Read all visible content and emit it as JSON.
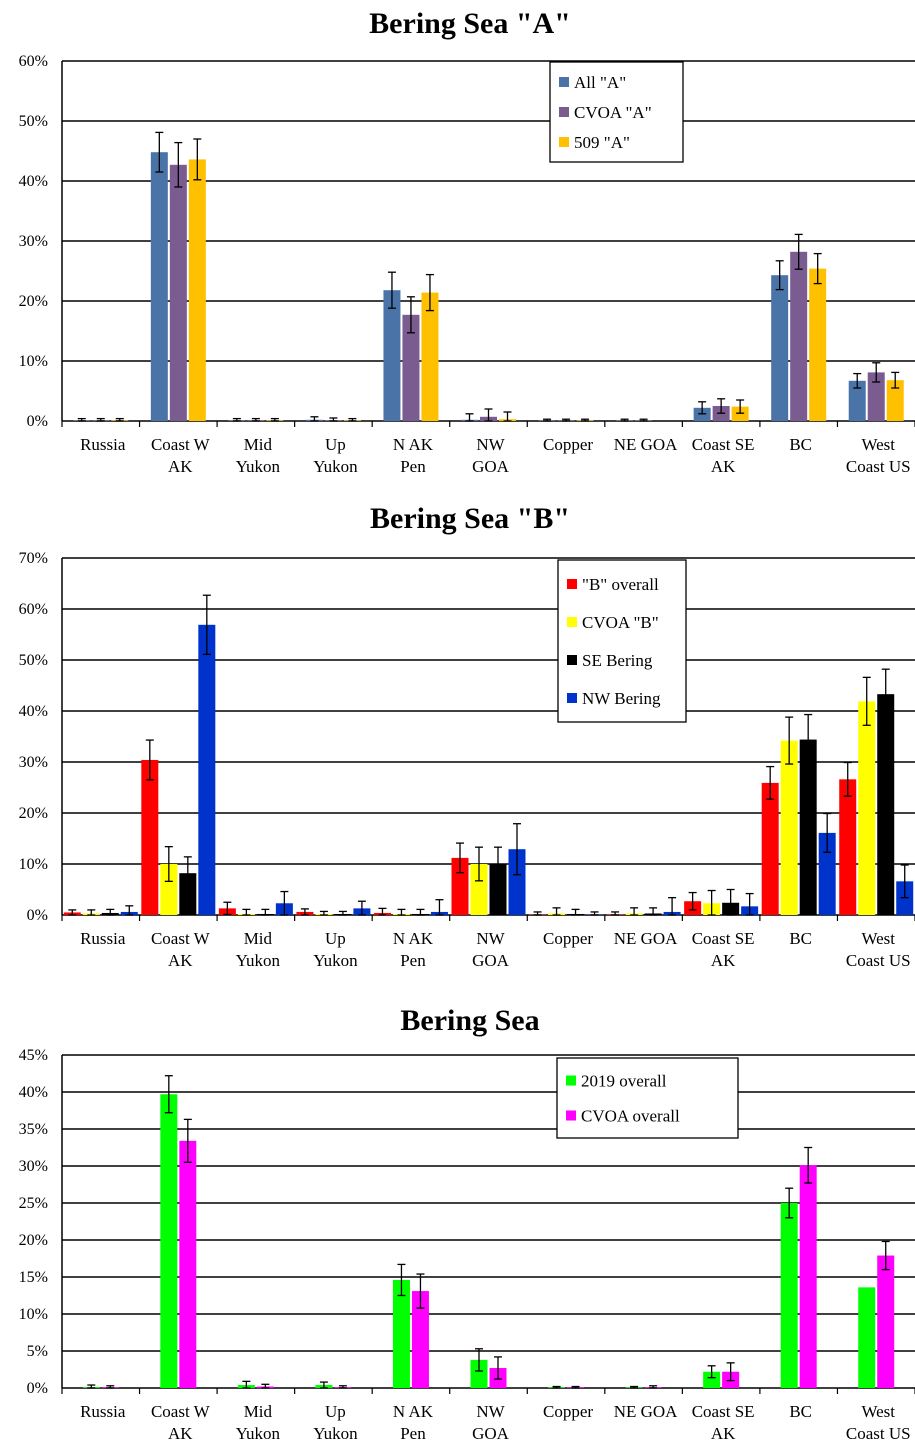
{
  "chart_data": [
    {
      "type": "bar",
      "title": "Bering Sea \"A\"",
      "categories": [
        "Russia",
        "Coast W AK",
        "Mid Yukon",
        "Up Yukon",
        "N AK Pen",
        "NW GOA",
        "Copper",
        "NE GOA",
        "Coast SE AK",
        "BC",
        "West Coast US"
      ],
      "category_lines": [
        [
          "Russia"
        ],
        [
          "Coast W",
          "AK"
        ],
        [
          "Mid",
          "Yukon"
        ],
        [
          "Up",
          "Yukon"
        ],
        [
          "N AK",
          "Pen"
        ],
        [
          "NW",
          "GOA"
        ],
        [
          "Copper"
        ],
        [
          "NE GOA"
        ],
        [
          "Coast SE",
          "AK"
        ],
        [
          "BC"
        ],
        [
          "West",
          "Coast US"
        ]
      ],
      "ylim": [
        0,
        60
      ],
      "ytick_step": 10,
      "yticks": [
        "0%",
        "10%",
        "20%",
        "30%",
        "40%",
        "50%",
        "60%"
      ],
      "grid": true,
      "legend_position": "top-right",
      "series": [
        {
          "name": "All \"A\"",
          "color": "#4a74a8",
          "values": [
            0.1,
            44.8,
            0.1,
            0.2,
            21.8,
            0.2,
            0.1,
            0.1,
            2.2,
            24.3,
            6.7
          ],
          "err": [
            0.3,
            3.3,
            0.3,
            0.5,
            3.0,
            1.0,
            0.2,
            0.2,
            1.0,
            2.4,
            1.2
          ]
        },
        {
          "name": "CVOA \"A\"",
          "color": "#7a5c91",
          "values": [
            0.1,
            42.7,
            0.1,
            0.1,
            17.7,
            0.7,
            0.1,
            0.1,
            2.5,
            28.2,
            8.1
          ],
          "err": [
            0.3,
            3.7,
            0.3,
            0.4,
            3.0,
            1.3,
            0.2,
            0.2,
            1.2,
            2.9,
            1.6
          ]
        },
        {
          "name": "509 \"A\"",
          "color": "#ffc000",
          "values": [
            0.1,
            43.6,
            0.1,
            0.1,
            21.4,
            0.3,
            0.1,
            0.0,
            2.4,
            25.4,
            6.8
          ],
          "err": [
            0.3,
            3.4,
            0.3,
            0.3,
            3.0,
            1.2,
            0.2,
            0.0,
            1.1,
            2.5,
            1.3
          ]
        }
      ]
    },
    {
      "type": "bar",
      "title": "Bering Sea \"B\"",
      "categories": [
        "Russia",
        "Coast W AK",
        "Mid Yukon",
        "Up Yukon",
        "N AK Pen",
        "NW GOA",
        "Copper",
        "NE GOA",
        "Coast SE AK",
        "BC",
        "West Coast US"
      ],
      "category_lines": [
        [
          "Russia"
        ],
        [
          "Coast W",
          "AK"
        ],
        [
          "Mid",
          "Yukon"
        ],
        [
          "Up",
          "Yukon"
        ],
        [
          "N AK",
          "Pen"
        ],
        [
          "NW",
          "GOA"
        ],
        [
          "Copper"
        ],
        [
          "NE GOA"
        ],
        [
          "Coast SE",
          "AK"
        ],
        [
          "BC"
        ],
        [
          "West",
          "Coast US"
        ]
      ],
      "ylim": [
        0,
        70
      ],
      "ytick_step": 10,
      "yticks": [
        "0%",
        "10%",
        "20%",
        "30%",
        "40%",
        "50%",
        "60%",
        "70%"
      ],
      "grid": true,
      "legend_position": "top-right",
      "series": [
        {
          "name": "\"B\" overall",
          "color": "#ff0000",
          "values": [
            0.5,
            30.4,
            1.3,
            0.6,
            0.4,
            11.2,
            0.1,
            0.1,
            2.7,
            25.9,
            26.6
          ],
          "err": [
            0.5,
            3.9,
            1.2,
            0.6,
            0.9,
            2.9,
            0.5,
            0.5,
            1.7,
            3.2,
            3.3
          ]
        },
        {
          "name": "CVOA \"B\"",
          "color": "#ffff00",
          "values": [
            0.3,
            10.0,
            0.2,
            0.2,
            0.2,
            10.0,
            0.3,
            0.3,
            2.3,
            34.2,
            41.9
          ],
          "err": [
            0.7,
            3.4,
            0.9,
            0.5,
            0.9,
            3.3,
            1.1,
            1.1,
            2.5,
            4.6,
            4.7
          ]
        },
        {
          "name": "SE Bering",
          "color": "#000000",
          "values": [
            0.4,
            8.2,
            0.2,
            0.2,
            0.2,
            10.0,
            0.2,
            0.3,
            2.4,
            34.4,
            43.3
          ],
          "err": [
            0.7,
            3.2,
            0.9,
            0.5,
            0.9,
            3.3,
            0.9,
            1.1,
            2.6,
            4.9,
            4.9
          ]
        },
        {
          "name": "NW Bering",
          "color": "#0033cc",
          "values": [
            0.6,
            56.9,
            2.3,
            1.3,
            0.6,
            12.9,
            0.1,
            0.6,
            1.7,
            16.1,
            6.6
          ],
          "err": [
            1.2,
            5.8,
            2.3,
            1.4,
            2.4,
            5.0,
            0.5,
            2.8,
            2.5,
            3.8,
            3.2
          ]
        }
      ]
    },
    {
      "type": "bar",
      "title": "Bering Sea",
      "categories": [
        "Russia",
        "Coast W AK",
        "Mid Yukon",
        "Up Yukon",
        "N AK Pen",
        "NW GOA",
        "Copper",
        "NE GOA",
        "Coast SE AK",
        "BC",
        "West Coast US"
      ],
      "category_lines": [
        [
          "Russia"
        ],
        [
          "Coast W",
          "AK"
        ],
        [
          "Mid",
          "Yukon"
        ],
        [
          "Up",
          "Yukon"
        ],
        [
          "N AK",
          "Pen"
        ],
        [
          "NW",
          "GOA"
        ],
        [
          "Copper"
        ],
        [
          "NE GOA"
        ],
        [
          "Coast SE",
          "AK"
        ],
        [
          "BC"
        ],
        [
          "West",
          "Coast US"
        ]
      ],
      "ylim": [
        0,
        45
      ],
      "ytick_step": 5,
      "yticks": [
        "0%",
        "5%",
        "10%",
        "15%",
        "20%",
        "25%",
        "30%",
        "35%",
        "40%",
        "45%"
      ],
      "grid": true,
      "legend_position": "top-right",
      "series": [
        {
          "name": "2019 overall",
          "color": "#00ff00",
          "values": [
            0.1,
            39.7,
            0.4,
            0.4,
            14.6,
            3.8,
            0.1,
            0.1,
            2.2,
            25.0,
            13.6
          ],
          "err": [
            0.3,
            2.5,
            0.5,
            0.4,
            2.1,
            1.5,
            0.1,
            0.1,
            0.8,
            2.0,
            0.0
          ]
        },
        {
          "name": "CVOA overall",
          "color": "#ff00ff",
          "values": [
            0.1,
            33.4,
            0.2,
            0.1,
            13.1,
            2.7,
            0.1,
            0.1,
            2.2,
            30.1,
            17.9
          ],
          "err": [
            0.2,
            2.9,
            0.3,
            0.2,
            2.3,
            1.5,
            0.1,
            0.2,
            1.2,
            2.4,
            1.9
          ]
        }
      ]
    }
  ]
}
